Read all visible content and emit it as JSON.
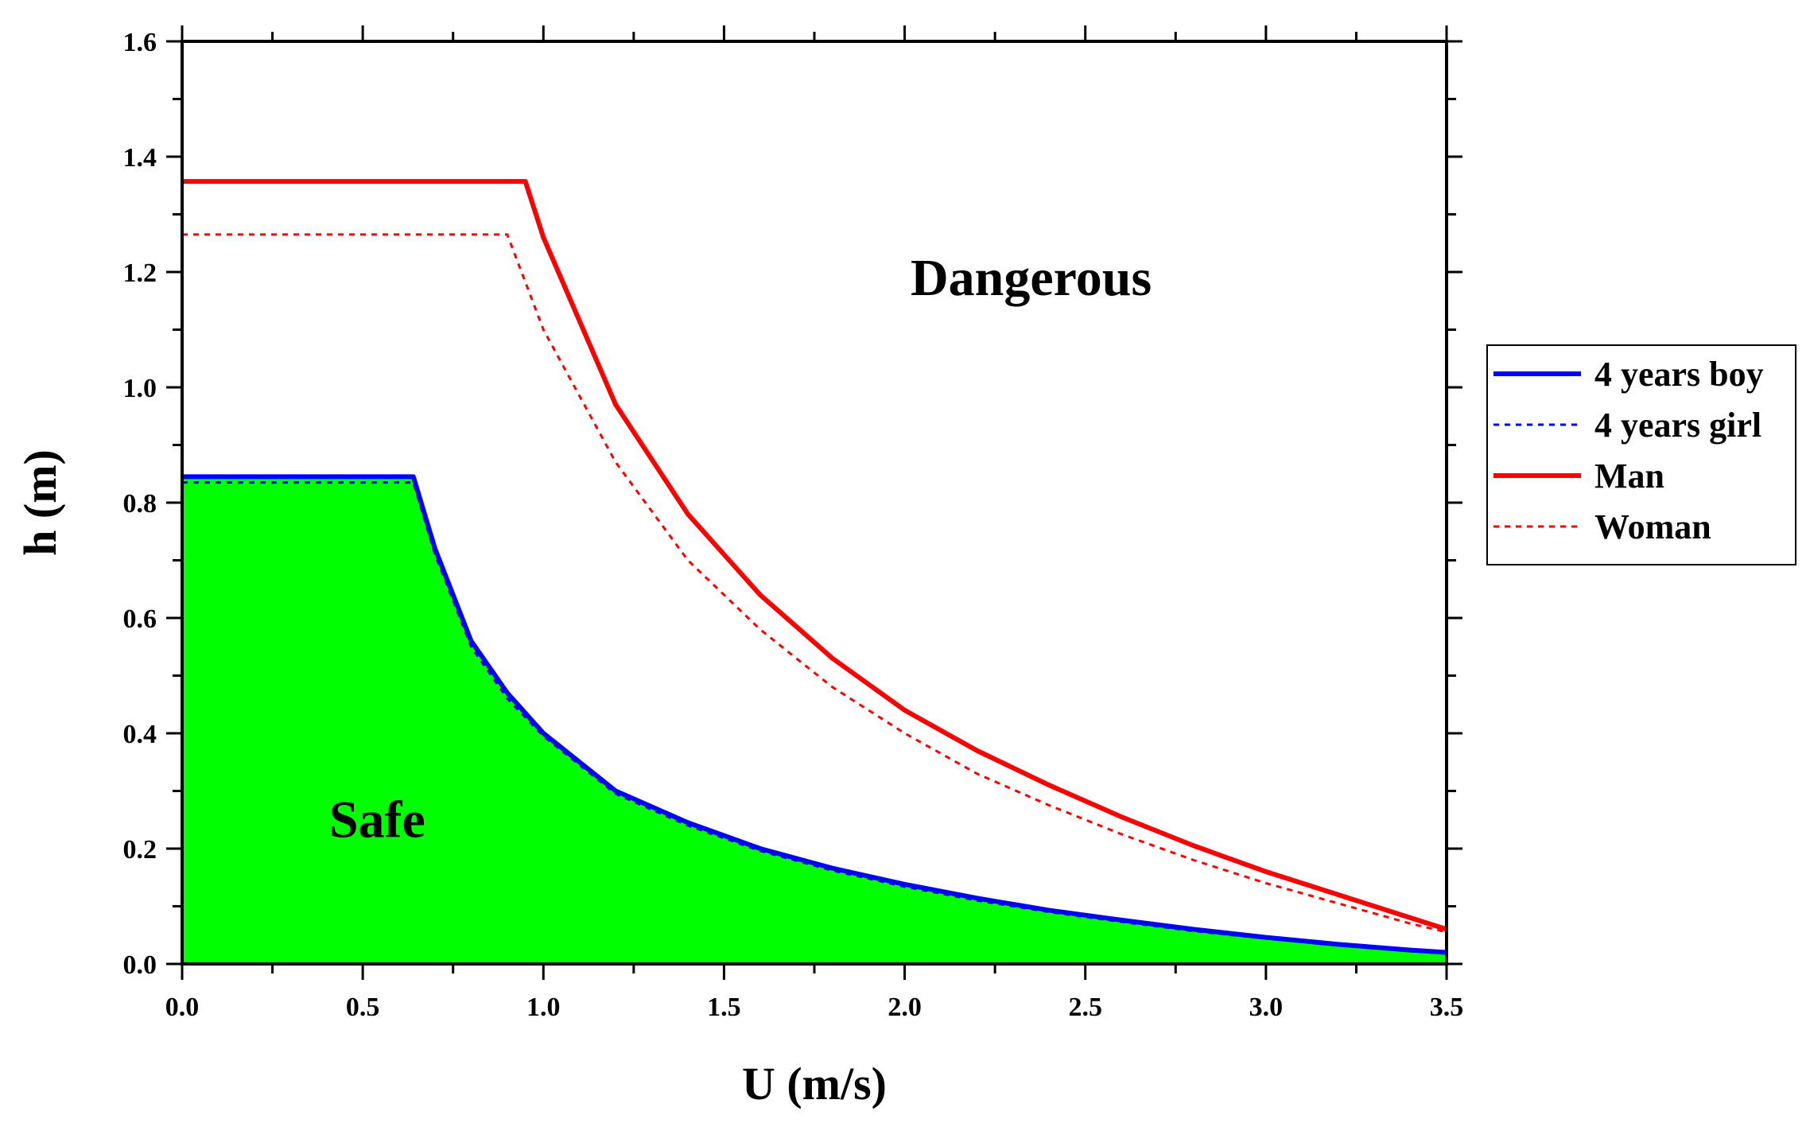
{
  "chart_data": {
    "type": "line",
    "title": "",
    "xlabel": "U (m/s)",
    "ylabel": "h (m)",
    "xlim": [
      0,
      3.5
    ],
    "ylim": [
      0,
      1.6
    ],
    "x_ticks": [
      "0.0",
      "0.5",
      "1.0",
      "1.5",
      "2.0",
      "2.5",
      "3.0",
      "3.5"
    ],
    "y_ticks": [
      "0.0",
      "0.2",
      "0.4",
      "0.6",
      "0.8",
      "1.0",
      "1.2",
      "1.4",
      "1.6"
    ],
    "grid": false,
    "legend_position": "right",
    "annotations": [
      {
        "text": "Dangerous",
        "x": 2.35,
        "y": 1.16
      },
      {
        "text": "Safe",
        "x": 0.54,
        "y": 0.22
      }
    ],
    "safe_region": {
      "color": "#00ff00",
      "boundary_series": "4 years boy"
    },
    "series": [
      {
        "name": "4 years boy",
        "color": "#0000ff",
        "style": "solid",
        "x": [
          0,
          0.64,
          0.7,
          0.8,
          0.9,
          1.0,
          1.2,
          1.4,
          1.6,
          1.8,
          2.0,
          2.2,
          2.4,
          2.6,
          2.8,
          3.0,
          3.2,
          3.4,
          3.5
        ],
        "values": [
          0.845,
          0.845,
          0.72,
          0.56,
          0.47,
          0.4,
          0.3,
          0.245,
          0.2,
          0.166,
          0.138,
          0.114,
          0.093,
          0.076,
          0.06,
          0.046,
          0.034,
          0.024,
          0.02
        ]
      },
      {
        "name": "4 years girl",
        "color": "#0000ff",
        "style": "dotted",
        "x": [
          0,
          0.64,
          0.7,
          0.8,
          0.9,
          1.0,
          1.2,
          1.4,
          1.6,
          1.8,
          2.0,
          2.2,
          2.4,
          2.6,
          2.8,
          3.0,
          3.2,
          3.4,
          3.5
        ],
        "values": [
          0.835,
          0.835,
          0.71,
          0.55,
          0.46,
          0.395,
          0.295,
          0.24,
          0.196,
          0.162,
          0.134,
          0.11,
          0.09,
          0.073,
          0.057,
          0.044,
          0.032,
          0.022,
          0.018
        ]
      },
      {
        "name": "Man",
        "color": "#ff0000",
        "style": "solid",
        "x": [
          0,
          0.95,
          1.0,
          1.2,
          1.4,
          1.6,
          1.8,
          2.0,
          2.2,
          2.4,
          2.6,
          2.8,
          3.0,
          3.2,
          3.4,
          3.5
        ],
        "values": [
          1.357,
          1.357,
          1.26,
          0.97,
          0.78,
          0.64,
          0.53,
          0.44,
          0.37,
          0.31,
          0.255,
          0.205,
          0.16,
          0.12,
          0.08,
          0.06
        ]
      },
      {
        "name": "Woman",
        "color": "#ff0000",
        "style": "dotted",
        "x": [
          0,
          0.9,
          1.0,
          1.2,
          1.4,
          1.6,
          1.8,
          2.0,
          2.2,
          2.4,
          2.6,
          2.8,
          3.0,
          3.2,
          3.4,
          3.5
        ],
        "values": [
          1.265,
          1.265,
          1.1,
          0.87,
          0.7,
          0.58,
          0.48,
          0.4,
          0.33,
          0.275,
          0.225,
          0.18,
          0.14,
          0.105,
          0.07,
          0.055
        ]
      }
    ]
  }
}
